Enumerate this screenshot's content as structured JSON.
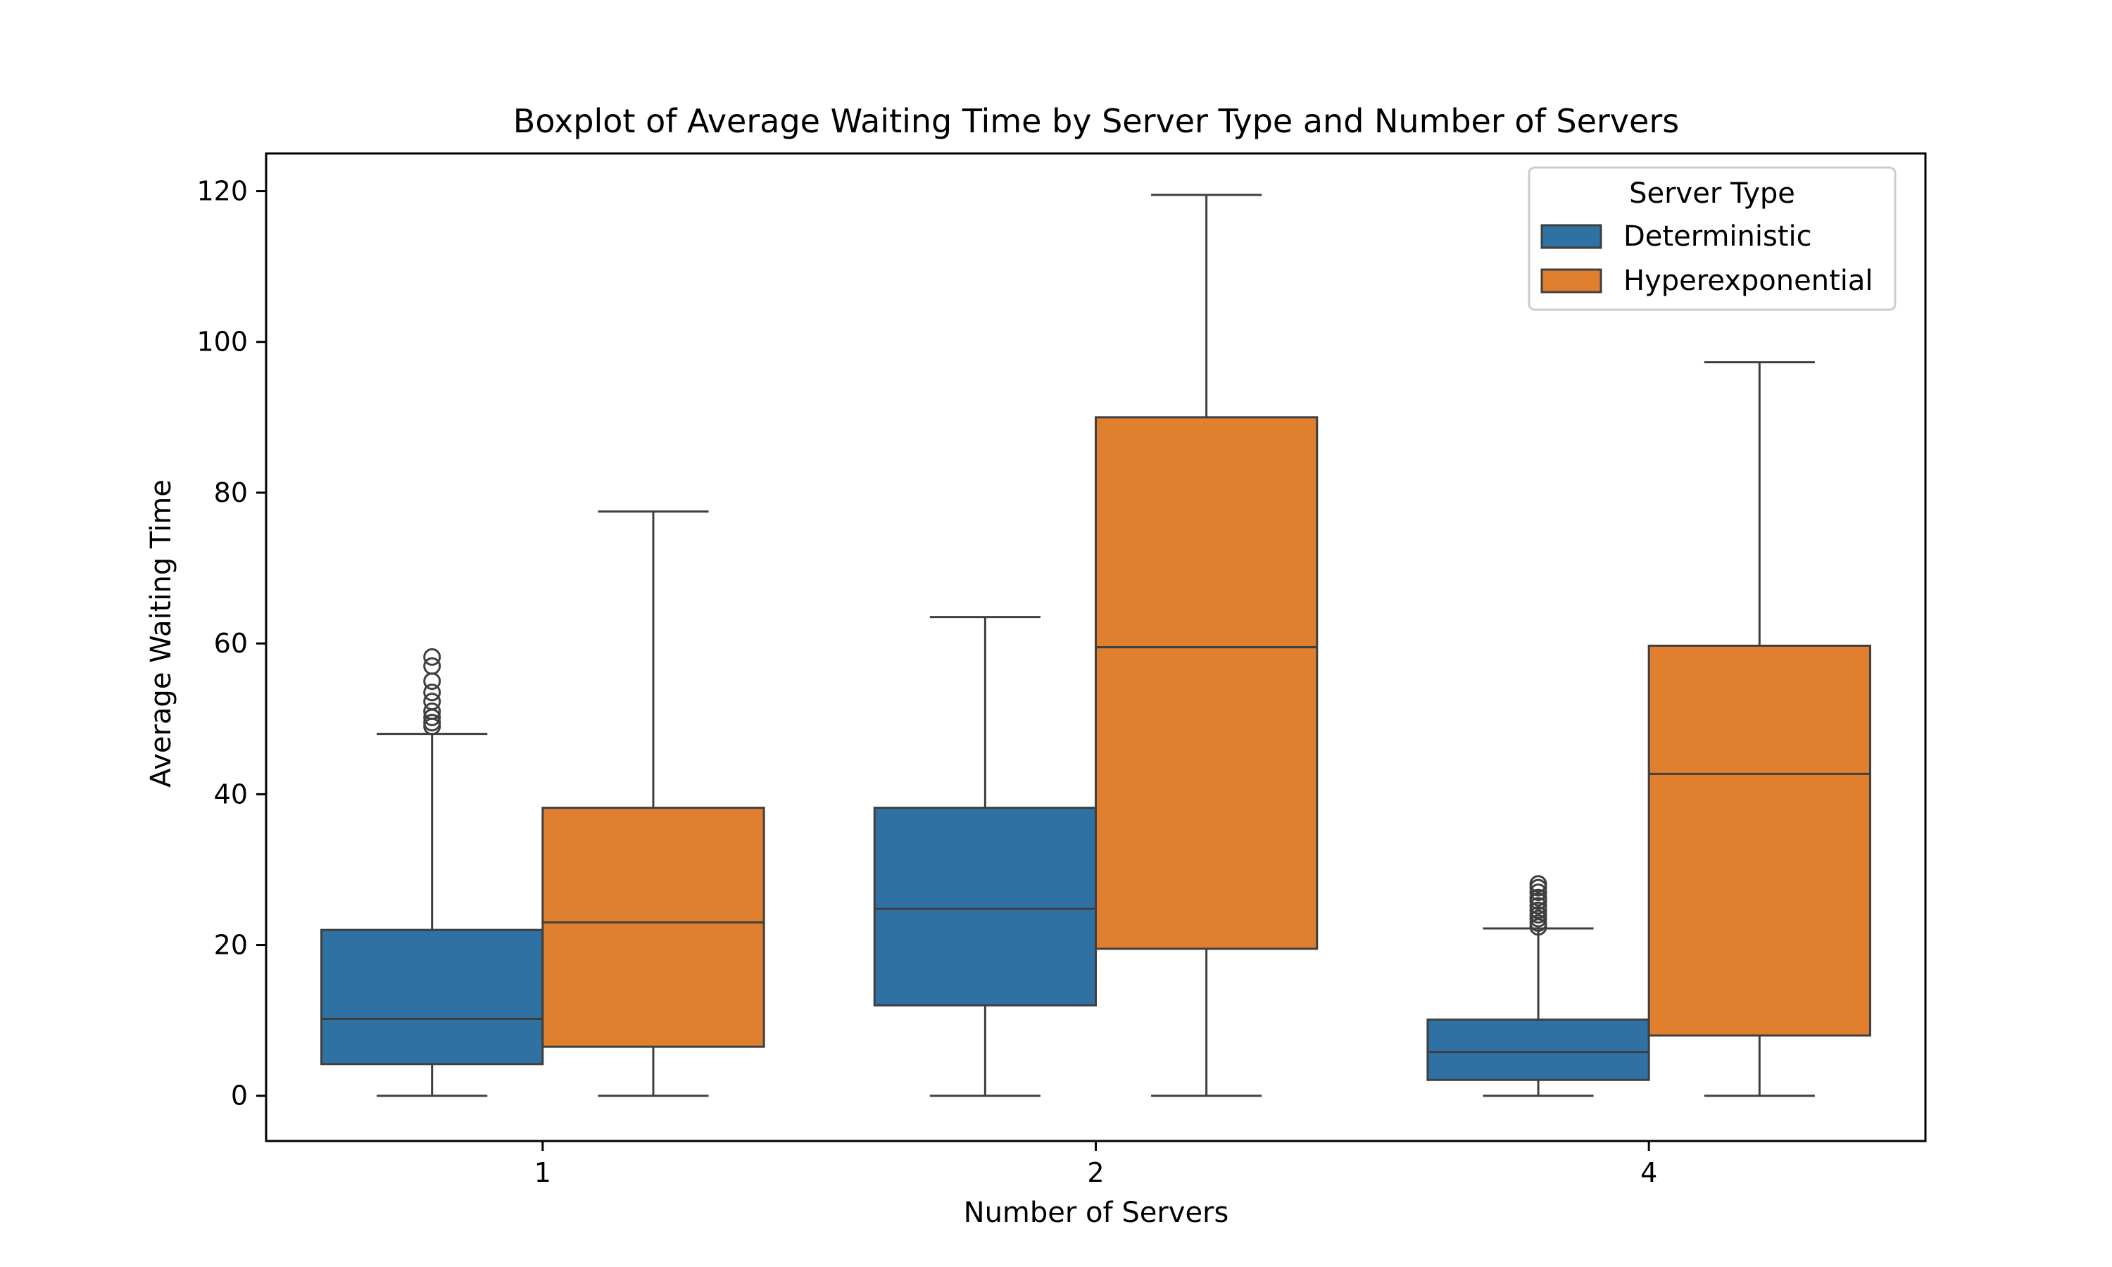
{
  "chart_data": {
    "type": "box",
    "title": "Boxplot of Average Waiting Time by Server Type and Number of Servers",
    "xlabel": "Number of Servers",
    "ylabel": "Average Waiting Time",
    "categories": [
      "1",
      "2",
      "4"
    ],
    "ylim": [
      -6,
      125
    ],
    "yticks": [
      0,
      20,
      40,
      60,
      80,
      100,
      120
    ],
    "grid": false,
    "legend": {
      "title": "Server Type",
      "position": "top-right"
    },
    "series": [
      {
        "name": "Deterministic",
        "color": "#2E71A2",
        "boxes": [
          {
            "category": "1",
            "whisker_low": 0,
            "q1": 4.2,
            "median": 10.2,
            "q3": 22,
            "whisker_high": 48,
            "outliers": [
              49,
              49.5,
              50.2,
              51,
              52.3,
              53.5,
              55,
              57,
              58.2
            ]
          },
          {
            "category": "2",
            "whisker_low": 0,
            "q1": 12,
            "median": 24.8,
            "q3": 38.2,
            "whisker_high": 63.5,
            "outliers": []
          },
          {
            "category": "4",
            "whisker_low": 0,
            "q1": 2.1,
            "median": 5.8,
            "q3": 10.1,
            "whisker_high": 22.2,
            "outliers": [
              22.4,
              22.9,
              23.5,
              24,
              24.6,
              25.2,
              25.8,
              26.3,
              27,
              27.6,
              28.1
            ]
          }
        ]
      },
      {
        "name": "Hyperexponential",
        "color": "#E0802F",
        "boxes": [
          {
            "category": "1",
            "whisker_low": 0,
            "q1": 6.5,
            "median": 23,
            "q3": 38.2,
            "whisker_high": 77.5,
            "outliers": []
          },
          {
            "category": "2",
            "whisker_low": 0,
            "q1": 19.5,
            "median": 59.5,
            "q3": 90,
            "whisker_high": 119.5,
            "outliers": []
          },
          {
            "category": "4",
            "whisker_low": 0,
            "q1": 8,
            "median": 42.7,
            "q3": 59.7,
            "whisker_high": 97.3,
            "outliers": []
          }
        ]
      }
    ]
  }
}
